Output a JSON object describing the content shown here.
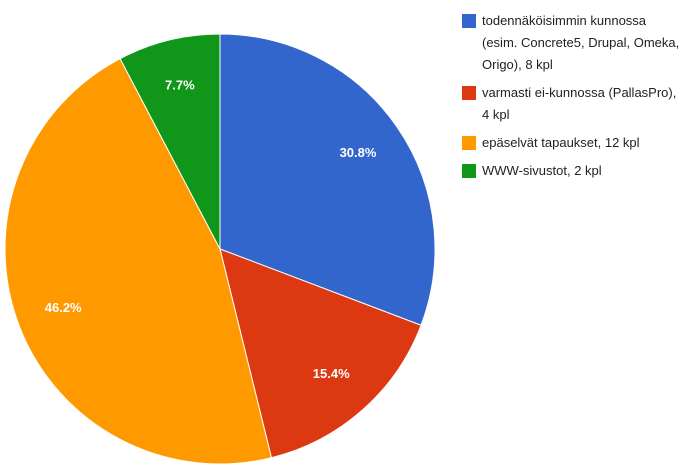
{
  "chart_data": {
    "type": "pie",
    "categories": [
      "todennäköisimmin kunnossa (esim. Concrete5, Drupal, Omeka, Origo), 8 kpl",
      "varmasti ei-kunnossa (PallasPro), 4 kpl",
      "epäselvät tapaukset, 12 kpl",
      "WWW-sivustot, 2 kpl"
    ],
    "values": [
      30.8,
      15.4,
      46.2,
      7.7
    ],
    "value_labels": [
      "30.8%",
      "15.4%",
      "46.2%",
      "7.7%"
    ],
    "colors": [
      "#3366cc",
      "#dc3912",
      "#ff9900",
      "#109618"
    ],
    "legend": "right"
  }
}
